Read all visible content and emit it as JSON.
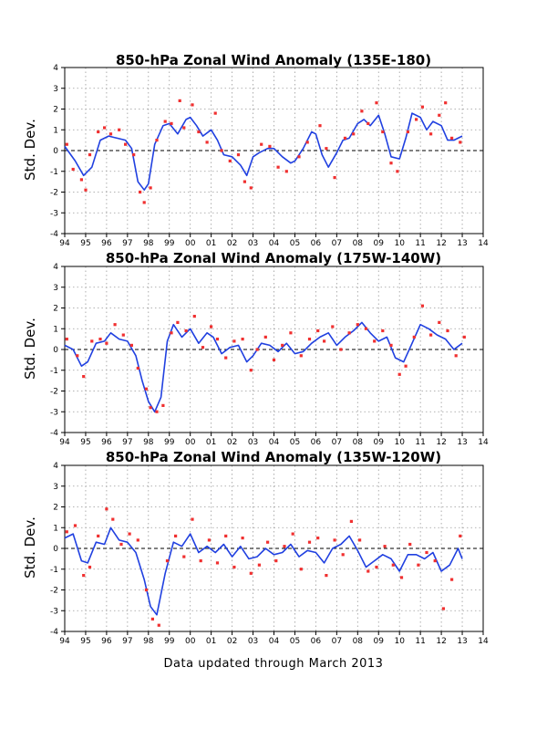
{
  "page": {
    "footer": "Data updated through March 2013"
  },
  "colors": {
    "smoothed_line": "#2040e0",
    "monthly_points": "#f03030",
    "zero_line": "#000000"
  },
  "chart_data": [
    {
      "type": "line",
      "title": "850-hPa Zonal Wind Anomaly (135E-180)",
      "xlabel": "",
      "ylabel": "Std. Dev.",
      "xlim": [
        1994,
        2014
      ],
      "ylim": [
        -4,
        4
      ],
      "x_ticks": [
        "94",
        "95",
        "96",
        "97",
        "98",
        "99",
        "00",
        "01",
        "02",
        "03",
        "04",
        "05",
        "06",
        "07",
        "08",
        "09",
        "10",
        "11",
        "12",
        "13",
        "14"
      ],
      "y_ticks": [
        "4",
        "3",
        "2",
        "1",
        "0",
        "-1",
        "-2",
        "-3",
        "-4"
      ],
      "grid": true,
      "series": [
        {
          "style": "line",
          "x": [
            1994.0,
            1994.5,
            1994.9,
            1995.3,
            1995.7,
            1996.1,
            1996.5,
            1996.9,
            1997.2,
            1997.5,
            1997.8,
            1998.0,
            1998.3,
            1998.7,
            1999.0,
            1999.4,
            1999.8,
            2000.0,
            2000.3,
            2000.6,
            2001.0,
            2001.3,
            2001.6,
            2002.0,
            2002.4,
            2002.7,
            2003.0,
            2003.3,
            2003.7,
            2004.0,
            2004.4,
            2004.8,
            2005.0,
            2005.4,
            2005.8,
            2006.0,
            2006.3,
            2006.6,
            2007.0,
            2007.3,
            2007.6,
            2008.0,
            2008.3,
            2008.6,
            2009.0,
            2009.3,
            2009.6,
            2010.0,
            2010.3,
            2010.6,
            2011.0,
            2011.3,
            2011.6,
            2012.0,
            2012.3,
            2012.6,
            2013.0
          ],
          "y": [
            0.2,
            -0.5,
            -1.2,
            -0.8,
            0.5,
            0.7,
            0.6,
            0.5,
            0.1,
            -1.5,
            -1.9,
            -1.6,
            0.3,
            1.2,
            1.3,
            0.8,
            1.5,
            1.6,
            1.2,
            0.7,
            1.0,
            0.5,
            -0.2,
            -0.3,
            -0.7,
            -1.2,
            -0.3,
            -0.1,
            0.1,
            0.1,
            -0.3,
            -0.6,
            -0.5,
            0.1,
            0.9,
            0.8,
            -0.2,
            -0.8,
            -0.1,
            0.5,
            0.6,
            1.3,
            1.5,
            1.2,
            1.7,
            0.8,
            -0.3,
            -0.4,
            0.6,
            1.8,
            1.6,
            1.0,
            1.4,
            1.2,
            0.5,
            0.5,
            0.7
          ]
        },
        {
          "style": "scatter",
          "x": [
            1994.1,
            1994.4,
            1994.8,
            1995.0,
            1995.2,
            1995.6,
            1995.9,
            1996.2,
            1996.6,
            1996.9,
            1997.3,
            1997.6,
            1997.8,
            1998.1,
            1998.4,
            1998.8,
            1999.1,
            1999.5,
            1999.7,
            2000.1,
            2000.4,
            2000.8,
            2001.2,
            2001.5,
            2001.9,
            2002.3,
            2002.6,
            2002.9,
            2003.4,
            2003.8,
            2004.2,
            2004.6,
            2005.2,
            2005.6,
            2006.2,
            2006.5,
            2006.9,
            2007.4,
            2007.8,
            2008.2,
            2008.5,
            2008.9,
            2009.2,
            2009.6,
            2009.9,
            2010.4,
            2010.8,
            2011.1,
            2011.5,
            2011.9,
            2012.2,
            2012.5,
            2012.9
          ],
          "y": [
            0.3,
            -0.9,
            -1.4,
            -1.9,
            -0.2,
            0.9,
            1.1,
            0.8,
            1.0,
            0.3,
            -0.2,
            -2.0,
            -2.5,
            -1.8,
            0.5,
            1.4,
            1.3,
            2.4,
            1.1,
            2.2,
            0.9,
            0.4,
            1.8,
            0.0,
            -0.5,
            -0.2,
            -1.5,
            -1.8,
            0.3,
            0.2,
            -0.8,
            -1.0,
            -0.3,
            0.4,
            1.2,
            0.1,
            -1.3,
            0.6,
            0.8,
            1.9,
            1.3,
            2.3,
            0.9,
            -0.6,
            -1.0,
            0.9,
            1.5,
            2.1,
            0.8,
            1.7,
            2.3,
            0.6,
            0.4
          ]
        }
      ]
    },
    {
      "type": "line",
      "title": "850-hPa Zonal Wind Anomaly (175W-140W)",
      "xlabel": "",
      "ylabel": "Std. Dev.",
      "xlim": [
        1994,
        2014
      ],
      "ylim": [
        -4,
        4
      ],
      "x_ticks": [
        "94",
        "95",
        "96",
        "97",
        "98",
        "99",
        "00",
        "01",
        "02",
        "03",
        "04",
        "05",
        "06",
        "07",
        "08",
        "09",
        "10",
        "11",
        "12",
        "13",
        "14"
      ],
      "y_ticks": [
        "4",
        "3",
        "2",
        "1",
        "0",
        "-1",
        "-2",
        "-3",
        "-4"
      ],
      "grid": true,
      "series": [
        {
          "style": "line",
          "x": [
            1994.0,
            1994.4,
            1994.8,
            1995.1,
            1995.5,
            1995.9,
            1996.2,
            1996.6,
            1997.0,
            1997.4,
            1997.7,
            1998.0,
            1998.3,
            1998.6,
            1998.9,
            1999.2,
            1999.6,
            2000.0,
            2000.4,
            2000.8,
            2001.1,
            2001.5,
            2001.9,
            2002.3,
            2002.7,
            2003.0,
            2003.4,
            2003.8,
            2004.2,
            2004.6,
            2005.0,
            2005.4,
            2005.8,
            2006.2,
            2006.6,
            2007.0,
            2007.4,
            2007.8,
            2008.2,
            2008.6,
            2009.0,
            2009.4,
            2009.8,
            2010.2,
            2010.6,
            2011.0,
            2011.4,
            2011.8,
            2012.2,
            2012.6,
            2013.0
          ],
          "y": [
            0.2,
            0.0,
            -0.8,
            -0.6,
            0.3,
            0.4,
            0.8,
            0.5,
            0.4,
            -0.3,
            -1.5,
            -2.5,
            -3.0,
            -2.3,
            0.4,
            1.2,
            0.6,
            1.0,
            0.3,
            0.8,
            0.6,
            -0.2,
            0.1,
            0.2,
            -0.6,
            -0.3,
            0.3,
            0.2,
            -0.1,
            0.3,
            -0.2,
            -0.1,
            0.3,
            0.6,
            0.8,
            0.2,
            0.6,
            0.9,
            1.3,
            0.8,
            0.4,
            0.6,
            -0.4,
            -0.6,
            0.3,
            1.2,
            1.0,
            0.7,
            0.5,
            0.0,
            0.3
          ]
        },
        {
          "style": "scatter",
          "x": [
            1994.1,
            1994.6,
            1994.9,
            1995.3,
            1995.7,
            1996.0,
            1996.4,
            1996.8,
            1997.2,
            1997.5,
            1997.9,
            1998.1,
            1998.4,
            1998.7,
            1999.1,
            1999.4,
            1999.8,
            2000.2,
            2000.6,
            2001.0,
            2001.3,
            2001.7,
            2002.1,
            2002.5,
            2002.9,
            2003.2,
            2003.6,
            2004.0,
            2004.4,
            2004.8,
            2005.3,
            2005.7,
            2006.1,
            2006.4,
            2006.8,
            2007.2,
            2007.6,
            2008.0,
            2008.4,
            2008.8,
            2009.2,
            2009.6,
            2010.0,
            2010.3,
            2010.7,
            2011.1,
            2011.5,
            2011.9,
            2012.3,
            2012.7,
            2013.1
          ],
          "y": [
            0.5,
            -0.3,
            -1.3,
            0.4,
            0.5,
            0.3,
            1.2,
            0.7,
            0.2,
            -0.9,
            -1.9,
            -2.8,
            -3.0,
            -2.7,
            0.8,
            1.3,
            0.9,
            1.6,
            0.1,
            1.1,
            0.5,
            -0.4,
            0.4,
            0.5,
            -1.0,
            0.0,
            0.6,
            -0.5,
            0.2,
            0.8,
            -0.3,
            0.5,
            0.9,
            0.4,
            1.1,
            0.0,
            0.8,
            1.2,
            1.0,
            0.4,
            0.9,
            0.2,
            -1.2,
            -0.8,
            0.6,
            2.1,
            0.7,
            1.3,
            0.9,
            -0.3,
            0.6
          ]
        }
      ]
    },
    {
      "type": "line",
      "title": "850-hPa Zonal Wind Anomaly (135W-120W)",
      "xlabel": "",
      "ylabel": "Std. Dev.",
      "xlim": [
        1994,
        2014
      ],
      "ylim": [
        -4,
        4
      ],
      "x_ticks": [
        "94",
        "95",
        "96",
        "97",
        "98",
        "99",
        "00",
        "01",
        "02",
        "03",
        "04",
        "05",
        "06",
        "07",
        "08",
        "09",
        "10",
        "11",
        "12",
        "13",
        "14"
      ],
      "y_ticks": [
        "4",
        "3",
        "2",
        "1",
        "0",
        "-1",
        "-2",
        "-3",
        "-4"
      ],
      "grid": true,
      "series": [
        {
          "style": "line",
          "x": [
            1994.0,
            1994.4,
            1994.8,
            1995.1,
            1995.5,
            1995.9,
            1996.2,
            1996.6,
            1997.0,
            1997.4,
            1997.8,
            1998.1,
            1998.4,
            1998.8,
            1999.2,
            1999.6,
            2000.0,
            2000.4,
            2000.8,
            2001.2,
            2001.6,
            2002.0,
            2002.4,
            2002.8,
            2003.2,
            2003.6,
            2004.0,
            2004.4,
            2004.8,
            2005.2,
            2005.6,
            2006.0,
            2006.4,
            2006.8,
            2007.2,
            2007.6,
            2008.0,
            2008.4,
            2008.8,
            2009.2,
            2009.6,
            2010.0,
            2010.4,
            2010.8,
            2011.2,
            2011.6,
            2012.0,
            2012.4,
            2012.8,
            2013.0
          ],
          "y": [
            0.5,
            0.7,
            -0.6,
            -0.7,
            0.3,
            0.2,
            1.0,
            0.4,
            0.3,
            -0.2,
            -1.5,
            -2.8,
            -3.2,
            -1.2,
            0.3,
            0.1,
            0.7,
            -0.2,
            0.1,
            -0.2,
            0.2,
            -0.4,
            0.1,
            -0.5,
            -0.4,
            0.0,
            -0.3,
            -0.2,
            0.2,
            -0.4,
            -0.1,
            -0.2,
            -0.7,
            0.0,
            0.2,
            0.6,
            -0.1,
            -0.9,
            -0.6,
            -0.3,
            -0.5,
            -1.1,
            -0.3,
            -0.3,
            -0.5,
            -0.2,
            -1.1,
            -0.8,
            0.0,
            -0.5
          ]
        },
        {
          "style": "scatter",
          "x": [
            1994.1,
            1994.5,
            1994.9,
            1995.2,
            1995.6,
            1996.0,
            1996.3,
            1996.7,
            1997.1,
            1997.5,
            1997.9,
            1998.2,
            1998.5,
            1998.9,
            1999.3,
            1999.7,
            2000.1,
            2000.5,
            2000.9,
            2001.3,
            2001.7,
            2002.1,
            2002.5,
            2002.9,
            2003.3,
            2003.7,
            2004.1,
            2004.5,
            2004.9,
            2005.3,
            2005.7,
            2006.1,
            2006.5,
            2006.9,
            2007.3,
            2007.7,
            2008.1,
            2008.5,
            2008.9,
            2009.3,
            2009.7,
            2010.1,
            2010.5,
            2010.9,
            2011.3,
            2011.7,
            2012.1,
            2012.5,
            2012.9
          ],
          "y": [
            0.8,
            1.1,
            -1.3,
            -0.9,
            0.6,
            1.9,
            1.4,
            0.2,
            0.7,
            0.4,
            -2.0,
            -3.4,
            -3.7,
            -0.6,
            0.6,
            -0.4,
            1.4,
            -0.6,
            0.4,
            -0.7,
            0.6,
            -0.9,
            0.5,
            -1.2,
            -0.8,
            0.3,
            -0.6,
            0.1,
            0.7,
            -1.0,
            0.3,
            0.5,
            -1.3,
            0.4,
            -0.3,
            1.3,
            0.4,
            -1.1,
            -0.9,
            0.1,
            -0.8,
            -1.4,
            0.2,
            -0.8,
            -0.2,
            -0.6,
            -2.9,
            -1.5,
            0.6
          ]
        }
      ]
    }
  ]
}
